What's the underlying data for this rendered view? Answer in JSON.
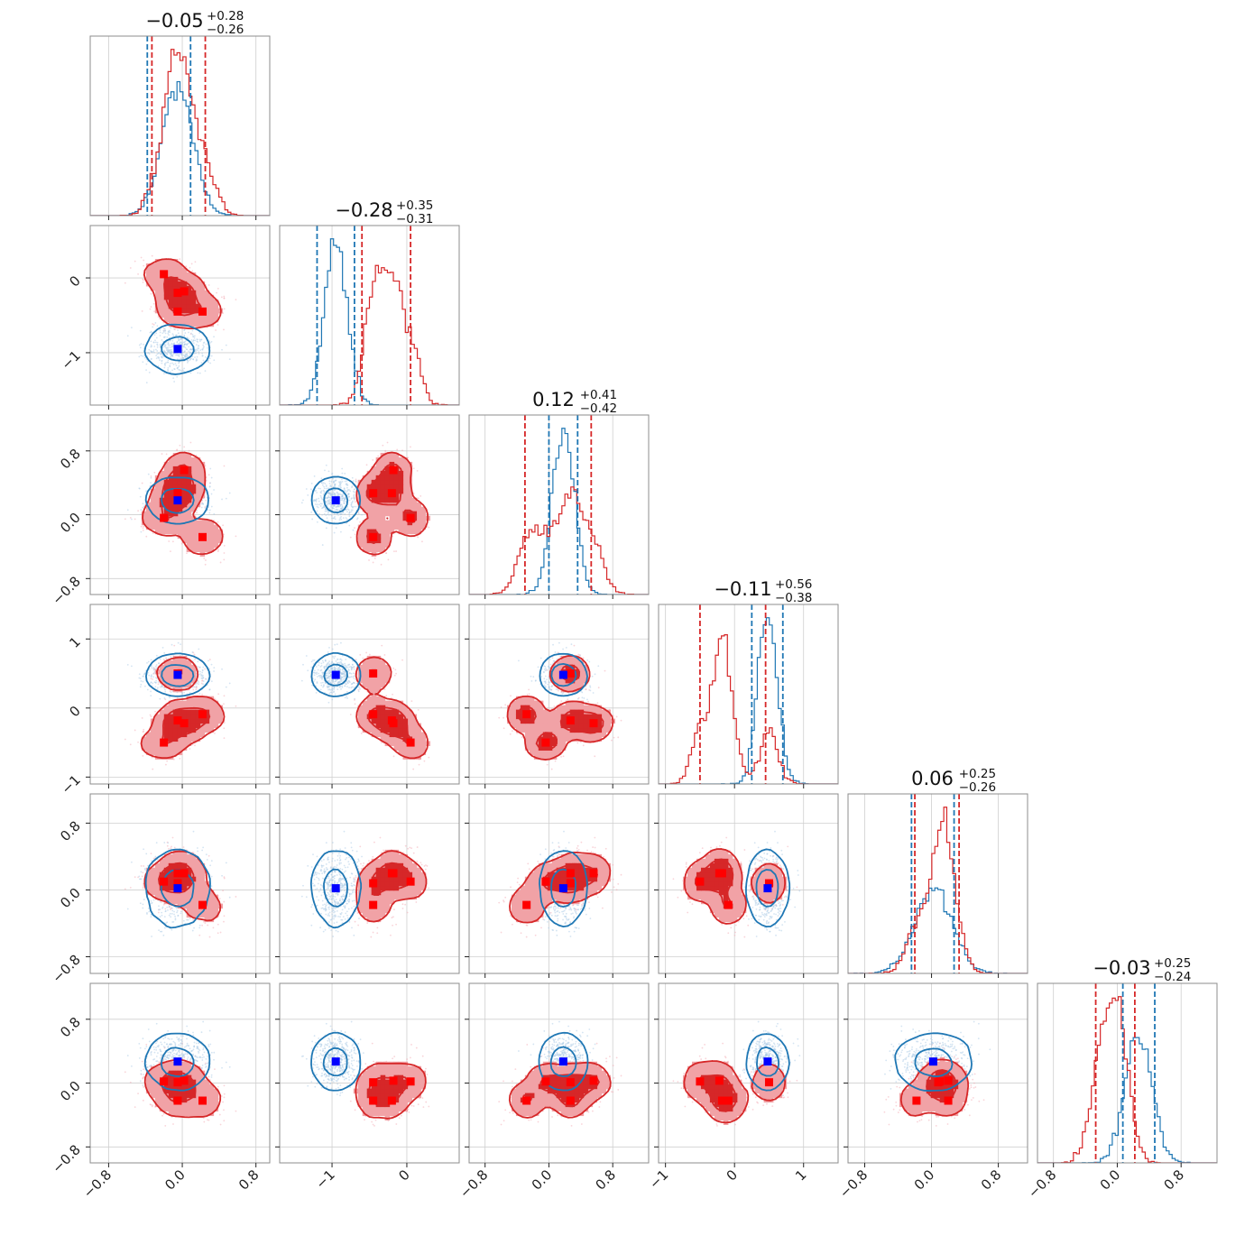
{
  "chart_data": {
    "type": "corner",
    "n_params": 6,
    "grid": true,
    "colors": {
      "blue": "#1f77b4",
      "red": "#d62728",
      "truth": "#0000ff",
      "truth_red": "#ff0000"
    },
    "titles": [
      {
        "value": "−0.05",
        "plus": "+0.28",
        "minus": "−0.26"
      },
      {
        "value": "−0.28",
        "plus": "+0.35",
        "minus": "−0.31"
      },
      {
        "value": "0.12",
        "plus": "+0.41",
        "minus": "−0.42"
      },
      {
        "value": "−0.11",
        "plus": "+0.56",
        "minus": "−0.38"
      },
      {
        "value": "0.06",
        "plus": "+0.25",
        "minus": "−0.26"
      },
      {
        "value": "−0.03",
        "plus": "+0.25",
        "minus": "−0.24"
      }
    ],
    "params": [
      {
        "range": [
          -1.0,
          0.95
        ],
        "ticks": [
          -0.8,
          0.0,
          0.8
        ],
        "tick_labels": [
          "−0.8",
          "0.0",
          "0.8"
        ]
      },
      {
        "range": [
          -1.7,
          0.7
        ],
        "ticks": [
          -1,
          0
        ],
        "tick_labels": [
          "−1",
          "0"
        ]
      },
      {
        "range": [
          -1.0,
          1.25
        ],
        "ticks": [
          -0.8,
          0.0,
          0.8
        ],
        "tick_labels": [
          "−0.8",
          "0.0",
          "0.8"
        ]
      },
      {
        "range": [
          -1.1,
          1.5
        ],
        "ticks": [
          -1,
          0,
          1
        ],
        "tick_labels": [
          "−1",
          "0",
          "1"
        ]
      },
      {
        "range": [
          -1.0,
          1.15
        ],
        "ticks": [
          -0.8,
          0.0,
          0.8
        ],
        "tick_labels": [
          "−0.8",
          "0.0",
          "0.8"
        ]
      },
      {
        "range": [
          -1.0,
          1.25
        ],
        "ticks": [
          -0.8,
          0.0,
          0.8
        ],
        "tick_labels": [
          "−0.8",
          "0.0",
          "0.8"
        ]
      }
    ],
    "blue": {
      "means": [
        -0.05,
        -0.95,
        0.18,
        0.48,
        0.02,
        0.27
      ],
      "sds": [
        0.17,
        0.15,
        0.14,
        0.14,
        0.22,
        0.17
      ],
      "quantiles": [
        [
          -0.38,
          0.09
        ],
        [
          -1.2,
          -0.7
        ],
        [
          0.0,
          0.36
        ],
        [
          0.25,
          0.7
        ],
        [
          -0.24,
          0.27
        ],
        [
          0.07,
          0.47
        ]
      ],
      "truth": [
        -0.05,
        -0.95,
        0.18,
        0.48,
        0.02,
        0.27
      ]
    },
    "red": {
      "modes": [
        [
          0.02,
          -0.18,
          0.56,
          -0.22,
          0.2,
          0.03
        ],
        [
          -0.05,
          -0.45,
          0.27,
          0.5,
          0.08,
          0.01
        ],
        [
          0.22,
          -0.45,
          -0.28,
          -0.09,
          -0.18,
          -0.22
        ],
        [
          -0.2,
          0.05,
          -0.04,
          -0.5,
          0.1,
          0.02
        ],
        [
          -0.05,
          -0.2,
          0.27,
          -0.18,
          0.2,
          -0.22
        ]
      ],
      "mode_sd": 0.13,
      "quantiles": [
        [
          -0.33,
          0.25
        ],
        [
          -0.6,
          0.05
        ],
        [
          -0.3,
          0.53
        ],
        [
          -0.5,
          0.45
        ],
        [
          -0.2,
          0.33
        ],
        [
          -0.27,
          0.22
        ]
      ],
      "truth_points": [
        [
          0.02,
          -0.18,
          0.56,
          -0.22,
          0.2,
          0.03
        ],
        [
          -0.05,
          -0.45,
          0.27,
          0.5,
          0.08,
          0.01
        ],
        [
          0.22,
          -0.45,
          -0.28,
          -0.09,
          -0.18,
          -0.22
        ],
        [
          -0.2,
          0.05,
          -0.04,
          -0.5,
          0.1,
          0.02
        ],
        [
          -0.05,
          -0.2,
          0.27,
          -0.18,
          0.2,
          -0.22
        ]
      ]
    }
  }
}
